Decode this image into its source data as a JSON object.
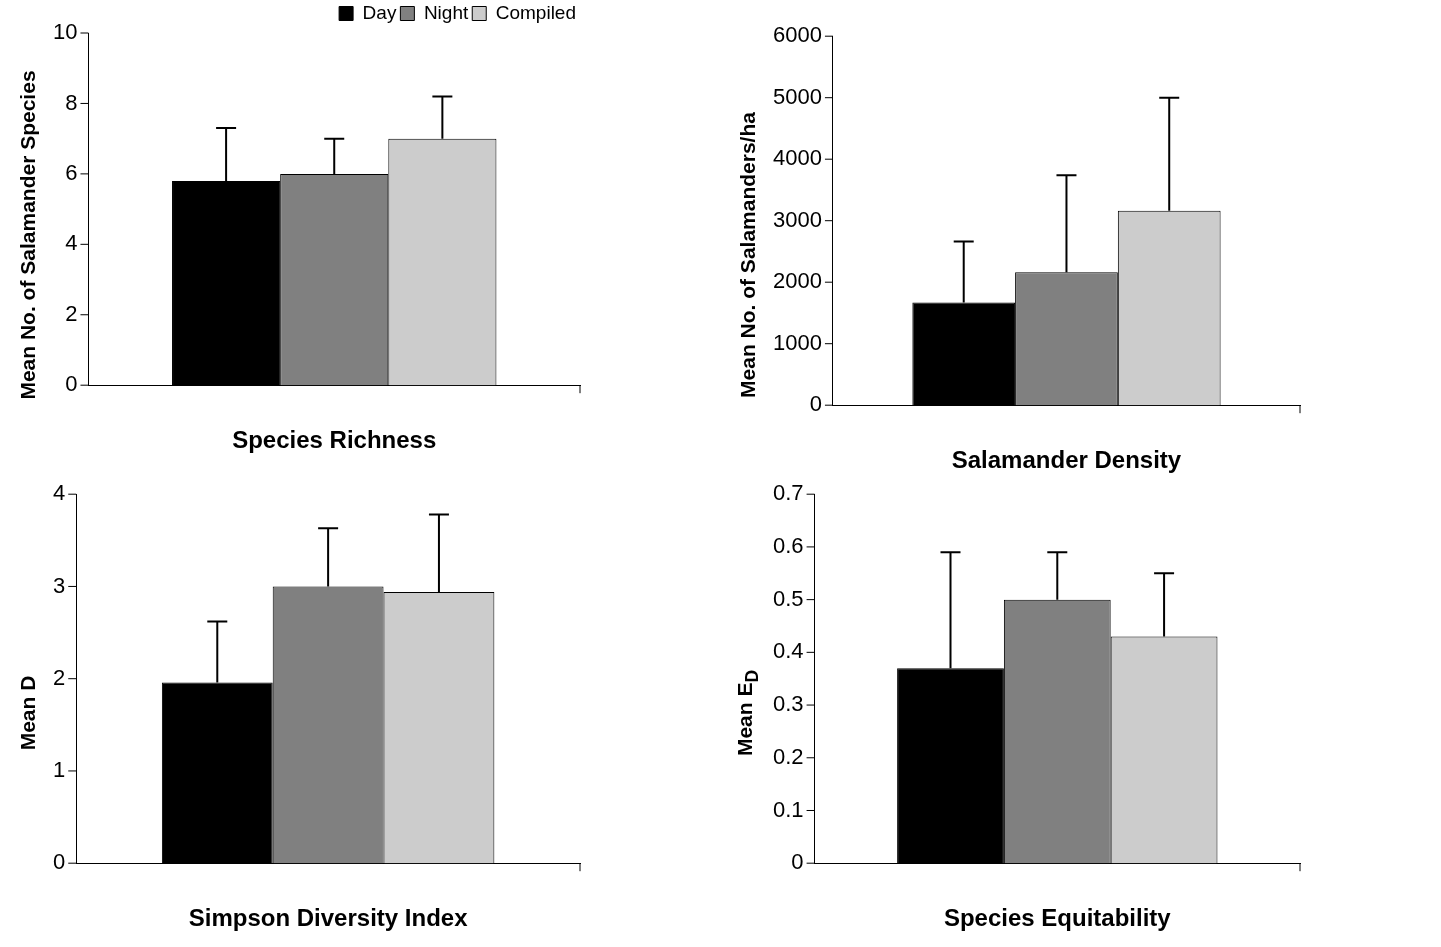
{
  "chart_data": [
    {
      "type": "bar",
      "xlabel": "Species Richness",
      "ylabel": "Mean No. of Salamander Species",
      "categories": [
        null
      ],
      "ylim": [
        0,
        10
      ],
      "yticks": [
        0,
        2,
        4,
        6,
        8,
        10
      ],
      "legend": "top right",
      "series": [
        {
          "name": "Day",
          "color": "#000000",
          "values": [
            5.8
          ],
          "errors": [
            [
              5.8,
              7.3
            ]
          ]
        },
        {
          "name": "Night",
          "color": "#808080",
          "values": [
            6.0
          ],
          "errors": [
            [
              6.0,
              7.0
            ]
          ]
        },
        {
          "name": "Compiled",
          "color": "#cccccc",
          "values": [
            7.0
          ],
          "errors": [
            [
              7.0,
              8.2
            ]
          ]
        }
      ]
    },
    {
      "type": "bar",
      "xlabel": "Salamander Density",
      "ylabel": "Mean No. of Salamanders/ha",
      "categories": [
        null
      ],
      "ylim": [
        0,
        6000
      ],
      "yticks": [
        0,
        1000,
        2000,
        3000,
        4000,
        5000,
        6000
      ],
      "series": [
        {
          "color": "#000000",
          "values": [
            1670
          ],
          "errors": [
            [
              1670,
              2660
            ]
          ]
        },
        {
          "color": "#808080",
          "values": [
            2160
          ],
          "errors": [
            [
              2160,
              3740
            ]
          ]
        },
        {
          "color": "#cccccc",
          "values": [
            3160
          ],
          "errors": [
            [
              3160,
              5000
            ]
          ]
        }
      ]
    },
    {
      "type": "bar",
      "xlabel": "Simpson Diversity Index",
      "ylabel": "Mean D",
      "categories": [
        null
      ],
      "ylim": [
        0,
        4
      ],
      "yticks": [
        0,
        1,
        2,
        3,
        4
      ],
      "series": [
        {
          "color": "#000000",
          "values": [
            1.96
          ],
          "errors": [
            [
              1.96,
              2.62
            ]
          ]
        },
        {
          "color": "#808080",
          "values": [
            3.0
          ],
          "errors": [
            [
              3.0,
              3.63
            ]
          ]
        },
        {
          "color": "#cccccc",
          "values": [
            2.94
          ],
          "errors": [
            [
              2.94,
              3.78
            ]
          ]
        }
      ]
    },
    {
      "type": "bar",
      "xlabel": "Species Equitability",
      "ylabel": "Mean E$_{D}$",
      "categories": [
        null
      ],
      "ylim": [
        0,
        0.7
      ],
      "yticks": [
        0,
        0.1,
        0.2,
        0.3,
        0.4,
        0.5,
        0.6,
        0.7
      ],
      "series": [
        {
          "color": "#000000",
          "values": [
            0.37
          ],
          "errors": [
            [
              0.37,
              0.59
            ]
          ]
        },
        {
          "color": "#808080",
          "values": [
            0.5
          ],
          "errors": [
            [
              0.5,
              0.59
            ]
          ]
        },
        {
          "color": "#cccccc",
          "values": [
            0.43
          ],
          "errors": [
            [
              0.43,
              0.55
            ]
          ]
        }
      ]
    }
  ]
}
